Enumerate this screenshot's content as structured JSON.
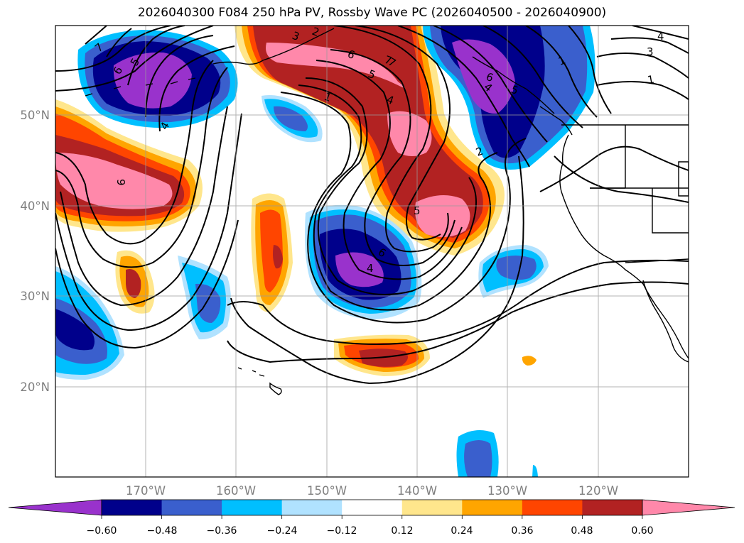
{
  "title": "2026040300 F084 250 hPa PV, Rossby Wave PC (2026040500 - 2026040900)",
  "map": {
    "projection": "equirectangular",
    "lon_range": [
      -180,
      -110
    ],
    "lat_range": [
      10,
      60
    ],
    "gridlines": true,
    "lat_labels": [
      "50°N",
      "40°N",
      "30°N",
      "20°N"
    ],
    "lon_labels": [
      "170°W",
      "160°W",
      "150°W",
      "140°W",
      "130°W",
      "120°W"
    ]
  },
  "colorbar": {
    "orientation": "horizontal",
    "extend": "both",
    "ticks": [
      "−0.60",
      "−0.48",
      "−0.36",
      "−0.24",
      "−0.12",
      "0.12",
      "0.24",
      "0.36",
      "0.48",
      "0.60"
    ],
    "colors": [
      "#9932cc",
      "#00008b",
      "#3a5fcd",
      "#00bfff",
      "#b0e2ff",
      "#ffffff",
      "#ffe68c",
      "#ffa500",
      "#ff4500",
      "#b22222",
      "#ff88aa"
    ]
  },
  "contour_labels": [
    "7",
    "6",
    "5",
    "4",
    "3",
    "2",
    "1",
    "6",
    "5",
    "4",
    "7",
    "6",
    "5",
    "4",
    "1",
    "2",
    "3",
    "4",
    "1",
    "7",
    "5",
    "4",
    "6",
    "9"
  ]
}
